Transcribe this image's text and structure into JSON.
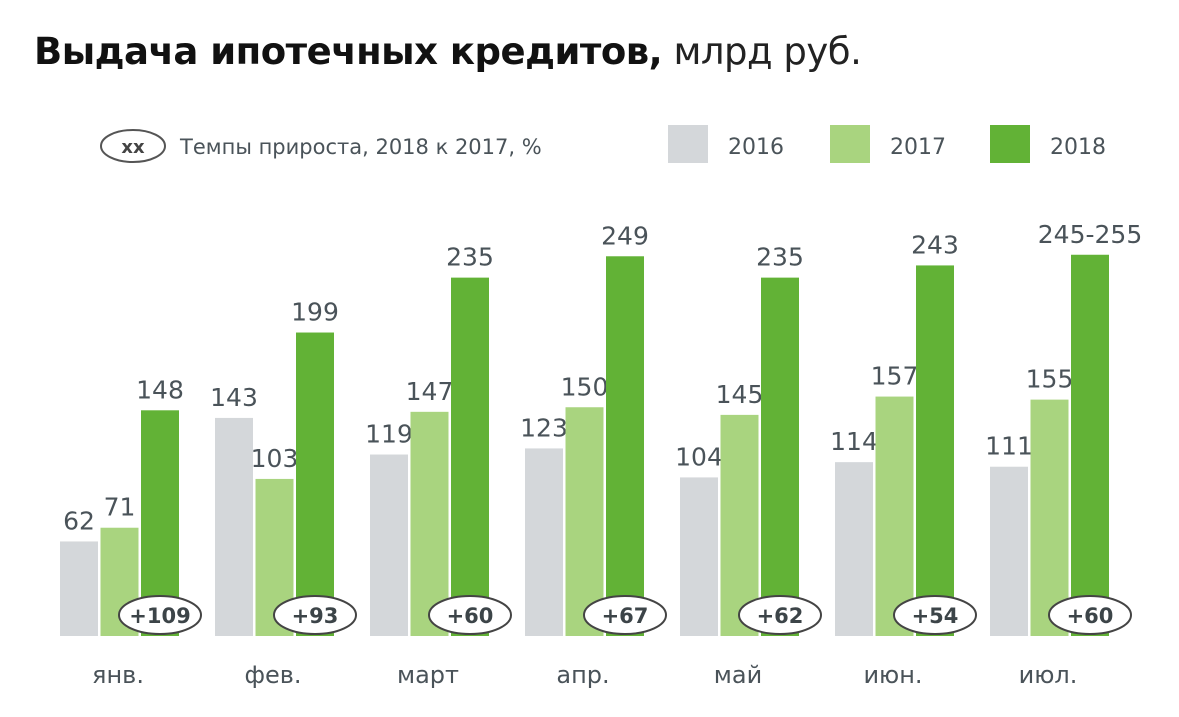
{
  "chart_data": {
    "type": "bar",
    "title": "Выдача ипотечных кредитов,",
    "unit": "млрд руб.",
    "legend": {
      "growth_marker": "xx",
      "growth_label": "Темпы прироста, 2018 к 2017, %",
      "placement": "top"
    },
    "categories": [
      "янв.",
      "фев.",
      "март",
      "апр.",
      "май",
      "июн.",
      "июл."
    ],
    "series": [
      {
        "name": "2016",
        "color": "#d4d7da",
        "values": [
          62,
          143,
          119,
          123,
          104,
          114,
          111
        ],
        "labels": [
          "62",
          "143",
          "119",
          "123",
          "104",
          "114",
          "111"
        ]
      },
      {
        "name": "2017",
        "color": "#a9d47f",
        "values": [
          71,
          103,
          147,
          150,
          145,
          157,
          155
        ],
        "labels": [
          "71",
          "103",
          "147",
          "150",
          "145",
          "157",
          "155"
        ]
      },
      {
        "name": "2018",
        "color": "#62b236",
        "values": [
          148,
          199,
          235,
          249,
          235,
          243,
          250
        ],
        "labels": [
          "148",
          "199",
          "235",
          "249",
          "235",
          "243",
          "245-255"
        ]
      }
    ],
    "growth": [
      "+109",
      "+93",
      "+60",
      "+67",
      "+62",
      "+54",
      "+60"
    ],
    "ylim": [
      0,
      260
    ],
    "grid": false
  }
}
